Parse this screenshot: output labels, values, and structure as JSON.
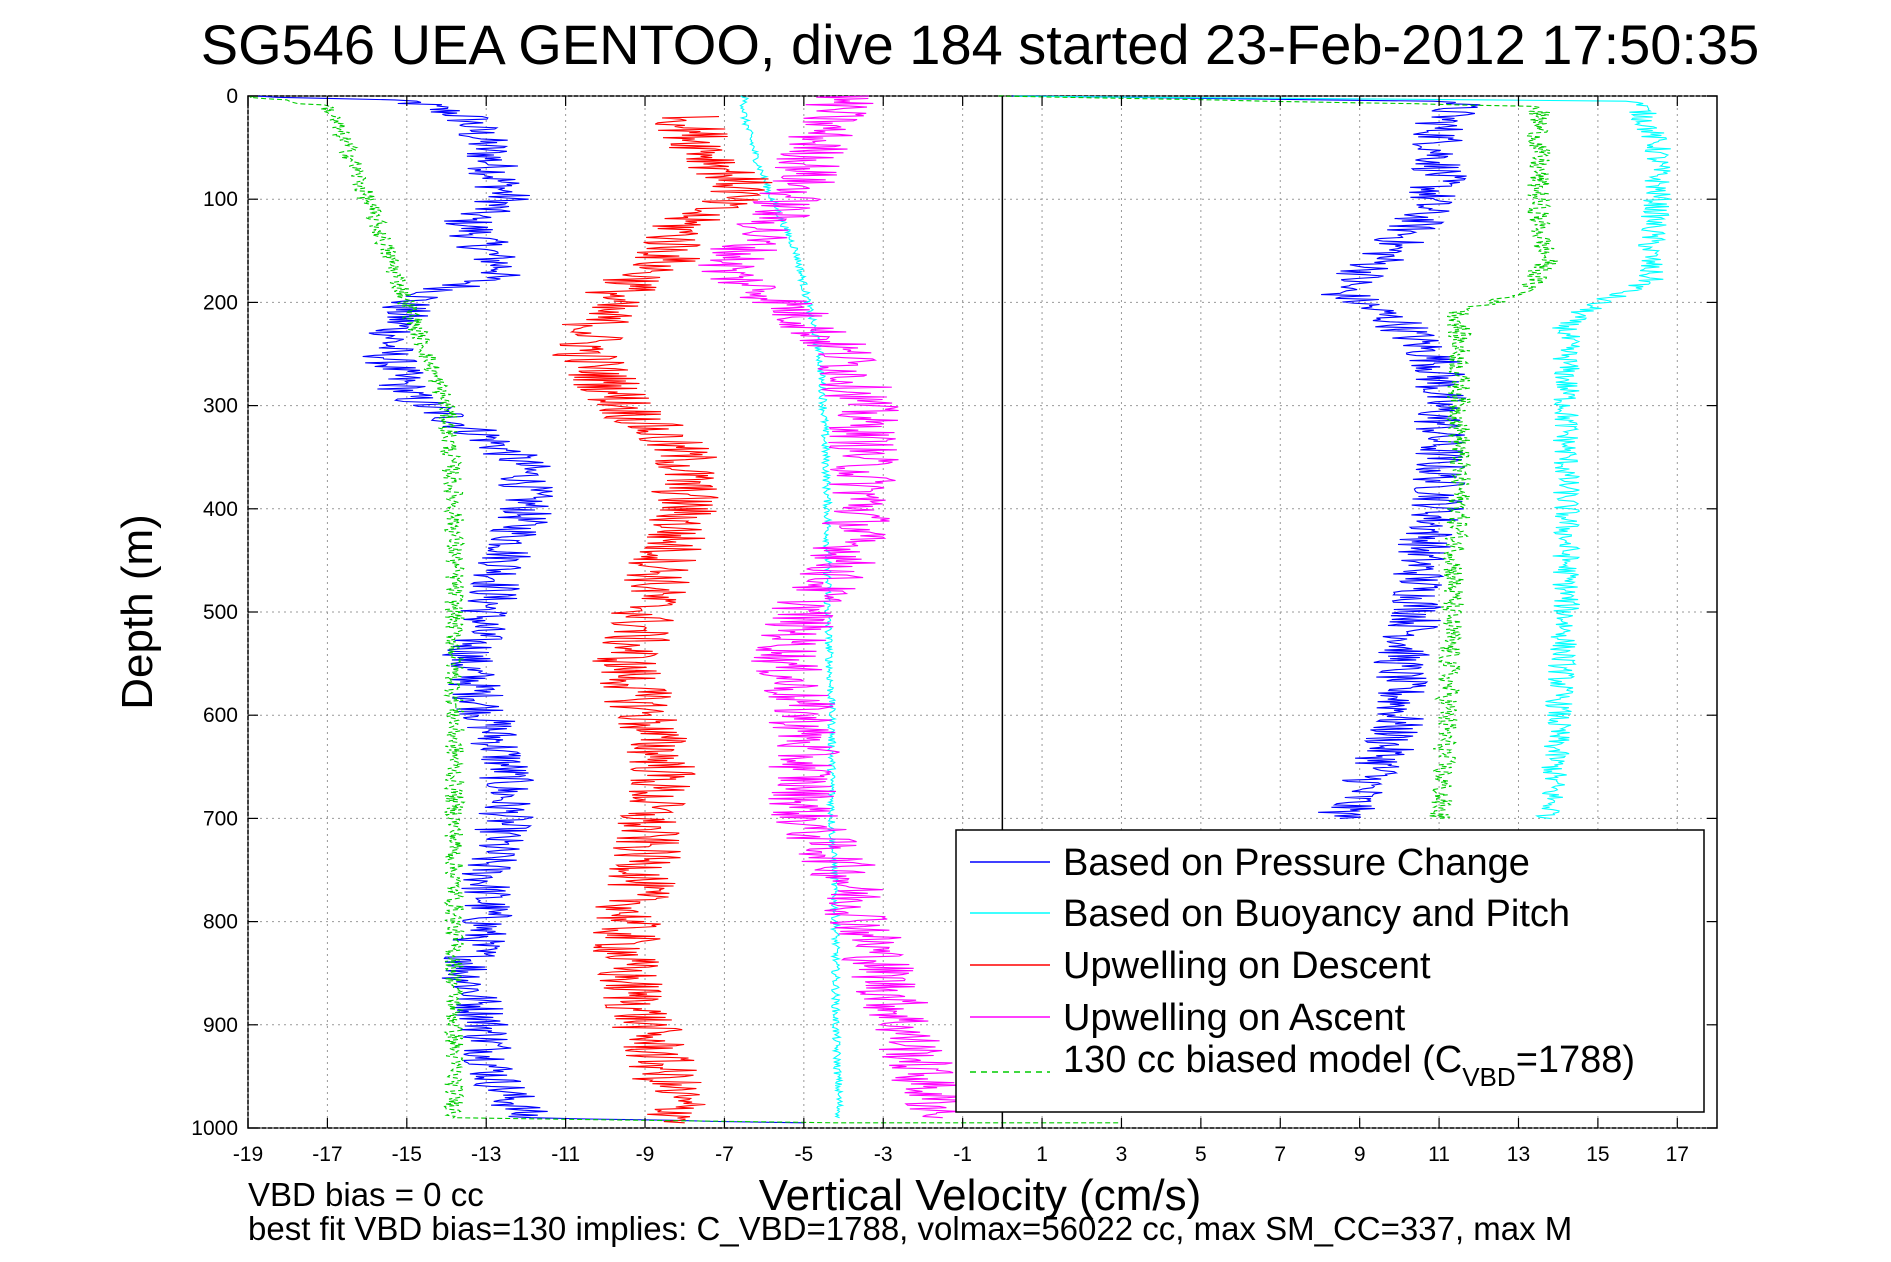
{
  "chart_data": {
    "type": "line",
    "title": "SG546 UEA GENTOO, dive 184 started 23-Feb-2012 17:50:35",
    "xlabel": "Vertical Velocity (cm/s)",
    "ylabel": "Depth (m)",
    "xlim": [
      -19,
      18
    ],
    "ylim": [
      0,
      1000
    ],
    "y_reversed": true,
    "grid": true,
    "x_ticks": [
      -19,
      -17,
      -15,
      -13,
      -11,
      -9,
      -7,
      -5,
      -3,
      -1,
      1,
      3,
      5,
      7,
      9,
      11,
      13,
      15,
      17
    ],
    "y_ticks": [
      0,
      100,
      200,
      300,
      400,
      500,
      600,
      700,
      800,
      900,
      1000
    ],
    "zero_line": 0,
    "legend_position": "bottom-right",
    "legend": [
      {
        "label": "Based on Pressure Change",
        "color": "#0000ff",
        "style": "solid"
      },
      {
        "label": "Based on Buoyancy and Pitch",
        "color": "#00ffff",
        "style": "solid"
      },
      {
        "label": "Upwelling on Descent",
        "color": "#ff0000",
        "style": "solid"
      },
      {
        "label": "Upwelling on Ascent",
        "color": "#ff00ff",
        "style": "solid"
      },
      {
        "label_main": "130 cc biased model (C",
        "label_sub": "VBD",
        "label_end": "=1788)",
        "color": "#00cc00",
        "style": "dashed"
      }
    ],
    "series": [
      {
        "name": "Based on Pressure Change (descent)",
        "color": "#0000ff",
        "noise": 0.7,
        "points": [
          [
            -19,
            0
          ],
          [
            -15,
            5
          ],
          [
            -13.5,
            20
          ],
          [
            -13,
            50
          ],
          [
            -12.5,
            100
          ],
          [
            -13.5,
            120
          ],
          [
            -13,
            150
          ],
          [
            -12.5,
            170
          ],
          [
            -15,
            200
          ],
          [
            -15.5,
            250
          ],
          [
            -15,
            290
          ],
          [
            -13,
            330
          ],
          [
            -12,
            360
          ],
          [
            -12,
            400
          ],
          [
            -12.5,
            450
          ],
          [
            -13,
            500
          ],
          [
            -13.5,
            550
          ],
          [
            -13,
            600
          ],
          [
            -12.5,
            650
          ],
          [
            -12.5,
            700
          ],
          [
            -13,
            750
          ],
          [
            -13,
            800
          ],
          [
            -13.5,
            850
          ],
          [
            -13,
            900
          ],
          [
            -12.8,
            950
          ],
          [
            -12,
            990
          ],
          [
            -5,
            995
          ]
        ]
      },
      {
        "name": "Based on Pressure Change (ascent)",
        "color": "#0000ff",
        "noise": 0.7,
        "points": [
          [
            0,
            0
          ],
          [
            11.5,
            5
          ],
          [
            11,
            30
          ],
          [
            11,
            80
          ],
          [
            10.5,
            120
          ],
          [
            9.5,
            160
          ],
          [
            8.5,
            190
          ],
          [
            10,
            220
          ],
          [
            11,
            260
          ],
          [
            11,
            300
          ],
          [
            11,
            350
          ],
          [
            11,
            400
          ],
          [
            10.5,
            450
          ],
          [
            10.5,
            500
          ],
          [
            10,
            550
          ],
          [
            10,
            600
          ],
          [
            9.5,
            650
          ],
          [
            8.5,
            700
          ]
        ]
      },
      {
        "name": "Based on Buoyancy and Pitch (descent)",
        "color": "#00ffff",
        "noise": 0.1,
        "points": [
          [
            -6.5,
            0
          ],
          [
            -6.5,
            20
          ],
          [
            -6.2,
            60
          ],
          [
            -5.8,
            100
          ],
          [
            -5.2,
            150
          ],
          [
            -4.9,
            200
          ],
          [
            -4.6,
            250
          ],
          [
            -4.5,
            300
          ],
          [
            -4.4,
            400
          ],
          [
            -4.4,
            500
          ],
          [
            -4.3,
            600
          ],
          [
            -4.3,
            700
          ],
          [
            -4.2,
            800
          ],
          [
            -4.2,
            900
          ],
          [
            -4.1,
            990
          ]
        ]
      },
      {
        "name": "Based on Buoyancy and Pitch (ascent)",
        "color": "#00ffff",
        "noise": 0.35,
        "points": [
          [
            0,
            0
          ],
          [
            16,
            5
          ],
          [
            16.5,
            50
          ],
          [
            16.5,
            100
          ],
          [
            16.3,
            150
          ],
          [
            16.3,
            180
          ],
          [
            15,
            200
          ],
          [
            14.2,
            220
          ],
          [
            14.2,
            300
          ],
          [
            14.2,
            400
          ],
          [
            14.2,
            500
          ],
          [
            14,
            600
          ],
          [
            13.8,
            700
          ]
        ]
      },
      {
        "name": "Upwelling on Descent",
        "color": "#ff0000",
        "noise": 0.9,
        "points": [
          [
            -8,
            20
          ],
          [
            -7.5,
            50
          ],
          [
            -6.5,
            90
          ],
          [
            -8,
            120
          ],
          [
            -8.5,
            160
          ],
          [
            -10,
            200
          ],
          [
            -10.5,
            250
          ],
          [
            -9.5,
            300
          ],
          [
            -8,
            350
          ],
          [
            -8,
            400
          ],
          [
            -8.5,
            450
          ],
          [
            -9,
            500
          ],
          [
            -9.5,
            550
          ],
          [
            -9,
            600
          ],
          [
            -8.5,
            650
          ],
          [
            -9,
            700
          ],
          [
            -9,
            750
          ],
          [
            -9.5,
            800
          ],
          [
            -9.5,
            850
          ],
          [
            -9,
            900
          ],
          [
            -8.5,
            950
          ],
          [
            -8,
            995
          ]
        ]
      },
      {
        "name": "Upwelling on Ascent",
        "color": "#ff00ff",
        "noise": 0.9,
        "points": [
          [
            -4,
            0
          ],
          [
            -4.5,
            30
          ],
          [
            -5,
            80
          ],
          [
            -6,
            130
          ],
          [
            -7,
            170
          ],
          [
            -5.5,
            200
          ],
          [
            -4,
            250
          ],
          [
            -3.5,
            300
          ],
          [
            -3.5,
            350
          ],
          [
            -3.5,
            400
          ],
          [
            -4,
            450
          ],
          [
            -5,
            500
          ],
          [
            -5.5,
            550
          ],
          [
            -5,
            600
          ],
          [
            -5,
            650
          ],
          [
            -5,
            700
          ],
          [
            -4,
            750
          ],
          [
            -3.5,
            800
          ],
          [
            -3,
            850
          ],
          [
            -2.5,
            900
          ],
          [
            -2,
            950
          ],
          [
            -1.5,
            990
          ]
        ]
      },
      {
        "name": "130 cc biased model",
        "color": "#00cc00",
        "noise": 0.25,
        "points": [
          [
            -19,
            0
          ],
          [
            -17,
            10
          ],
          [
            -16.5,
            50
          ],
          [
            -16,
            100
          ],
          [
            -15.5,
            150
          ],
          [
            -15,
            200
          ],
          [
            -14.5,
            250
          ],
          [
            -14,
            300
          ],
          [
            -13.8,
            400
          ],
          [
            -13.8,
            500
          ],
          [
            -13.8,
            600
          ],
          [
            -13.8,
            700
          ],
          [
            -13.8,
            800
          ],
          [
            -13.8,
            900
          ],
          [
            -13.8,
            990
          ],
          [
            -4,
            995
          ],
          [
            3,
            995
          ]
        ]
      },
      {
        "name": "130 cc biased model (ascent)",
        "color": "#00cc00",
        "noise": 0.3,
        "points": [
          [
            0,
            0
          ],
          [
            13.5,
            10
          ],
          [
            13.5,
            60
          ],
          [
            13.5,
            120
          ],
          [
            13.7,
            160
          ],
          [
            13.2,
            190
          ],
          [
            11.5,
            210
          ],
          [
            11.5,
            260
          ],
          [
            11.5,
            300
          ],
          [
            11.5,
            400
          ],
          [
            11.3,
            500
          ],
          [
            11.2,
            600
          ],
          [
            11,
            700
          ]
        ]
      }
    ]
  },
  "footer": {
    "line1": "VBD bias = 0 cc",
    "line2": "best fit VBD bias=130 implies: C_VBD=1788, volmax=56022 cc, max SM_CC=337, max M"
  }
}
